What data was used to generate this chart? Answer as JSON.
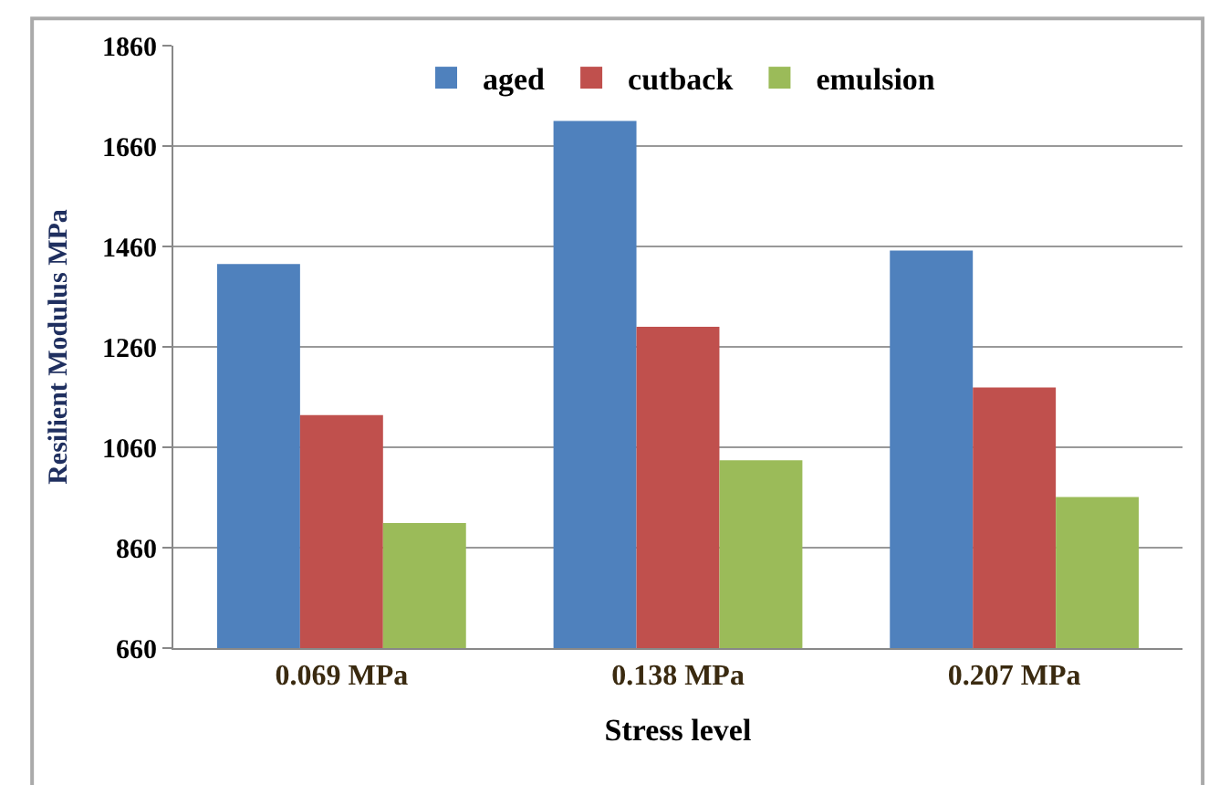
{
  "chart_data": {
    "type": "bar",
    "xlabel": "Stress level",
    "ylabel": "Resilient Modulus MPa",
    "categories": [
      "0.069 MPa",
      "0.138 MPa",
      "0.207 MPa"
    ],
    "series": [
      {
        "name": "aged",
        "color": "#4f81bd",
        "values": [
          1425,
          1710,
          1452
        ]
      },
      {
        "name": "cutback",
        "color": "#c0504d",
        "values": [
          1124,
          1300,
          1179
        ]
      },
      {
        "name": "emulsion",
        "color": "#9bbb59",
        "values": [
          909,
          1034,
          961
        ]
      }
    ],
    "ylim": [
      660,
      1860
    ],
    "yticks": [
      660,
      860,
      1060,
      1260,
      1460,
      1660,
      1860
    ],
    "grid": "y",
    "legend": "top"
  }
}
